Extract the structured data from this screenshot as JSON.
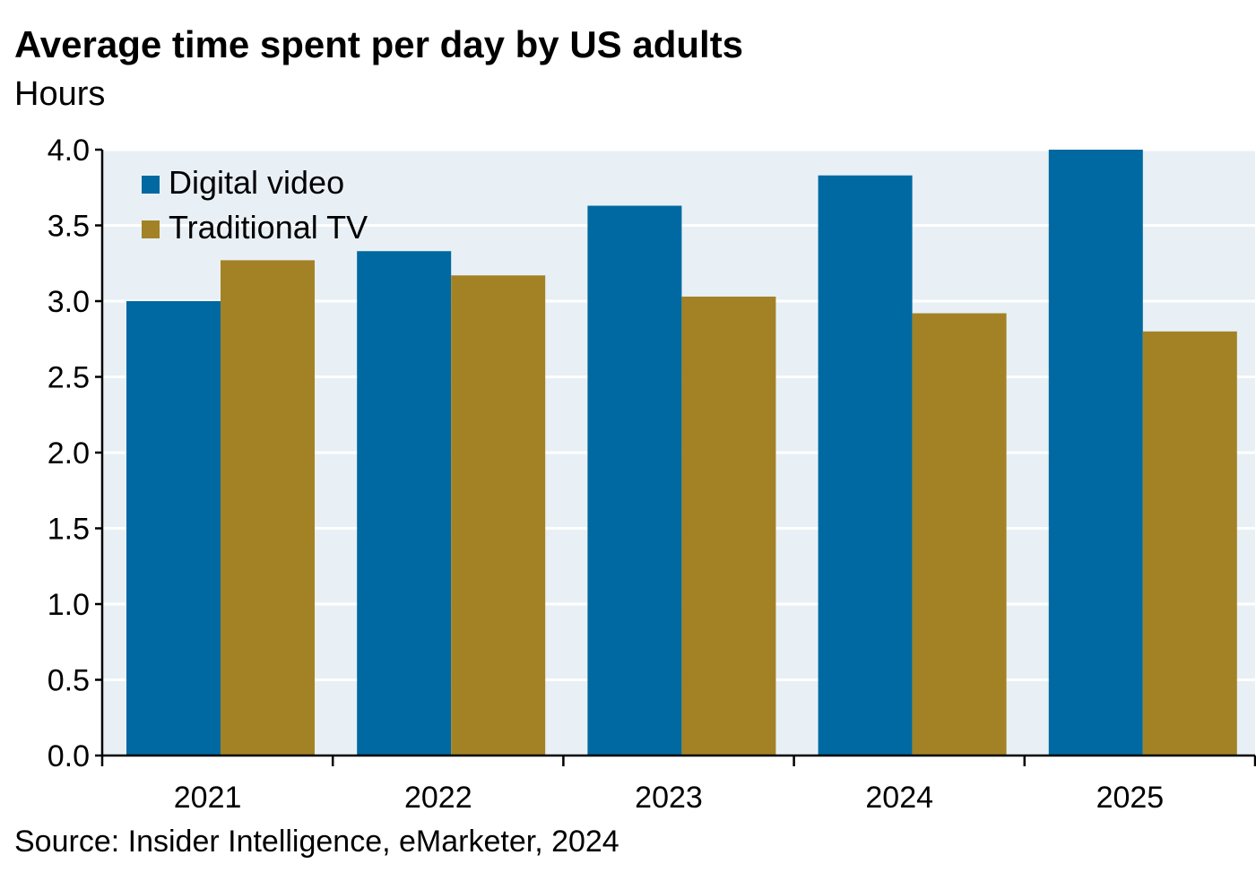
{
  "title": "Average time spent per day by US adults",
  "subtitle": "Hours",
  "source": "Source: Insider Intelligence, eMarketer, 2024",
  "colors": {
    "plot_background": "#e8f0f6",
    "gridline": "#ffffff",
    "axis": "#000000"
  },
  "chart_data": {
    "type": "bar",
    "categories": [
      "2021",
      "2022",
      "2023",
      "2024",
      "2025"
    ],
    "series": [
      {
        "name": "Digital video",
        "color": "#0069a1",
        "values": [
          3.0,
          3.33,
          3.63,
          3.83,
          4.0
        ]
      },
      {
        "name": "Traditional TV",
        "color": "#a38225",
        "values": [
          3.27,
          3.17,
          3.03,
          2.92,
          2.8
        ]
      }
    ],
    "ylim": [
      0,
      4.0
    ],
    "yticks": [
      "0.0",
      "0.5",
      "1.0",
      "1.5",
      "2.0",
      "2.5",
      "3.0",
      "3.5",
      "4.0"
    ],
    "xlabel": "",
    "ylabel": "",
    "grid": true,
    "legend_position": "top-left"
  }
}
